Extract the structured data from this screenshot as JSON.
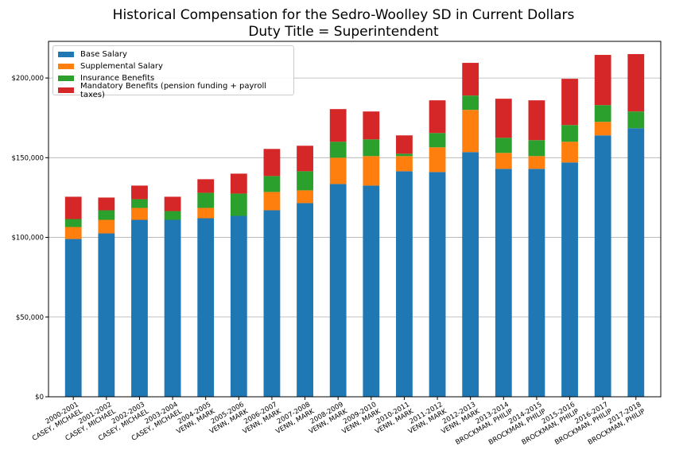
{
  "chart_data": {
    "type": "bar",
    "stacked": true,
    "title": "Historical Compensation for the Sedro-Woolley SD in Current Dollars",
    "subtitle": "Duty Title = Superintendent",
    "xlabel": "",
    "ylabel": "",
    "ylim": [
      0,
      223000
    ],
    "yticks": [
      0,
      50000,
      100000,
      150000,
      200000
    ],
    "ytick_labels": [
      "$0",
      "$50,000",
      "$100,000",
      "$150,000",
      "$200,000"
    ],
    "grid": "y",
    "legend_position": "top-left",
    "categories": [
      [
        "2000-2001",
        "CASEY, MICHAEL"
      ],
      [
        "2001-2002",
        "CASEY, MICHAEL"
      ],
      [
        "2002-2003",
        "CASEY, MICHAEL"
      ],
      [
        "2003-2004",
        "CASEY, MICHAEL"
      ],
      [
        "2004-2005",
        "VENN, MARK"
      ],
      [
        "2005-2006",
        "VENN, MARK"
      ],
      [
        "2006-2007",
        "VENN, MARK"
      ],
      [
        "2007-2008",
        "VENN, MARK"
      ],
      [
        "2008-2009",
        "VENN, MARK"
      ],
      [
        "2009-2010",
        "VENN, MARK"
      ],
      [
        "2010-2011",
        "VENN, MARK"
      ],
      [
        "2011-2012",
        "VENN, MARK"
      ],
      [
        "2012-2013",
        "VENN, MARK"
      ],
      [
        "2013-2014",
        "BROCKMAN, PHILIP"
      ],
      [
        "2014-2015",
        "BROCKMAN, PHILIP"
      ],
      [
        "2015-2016",
        "BROCKMAN, PHILIP"
      ],
      [
        "2016-2017",
        "BROCKMAN, PHILIP"
      ],
      [
        "2017-2018",
        "BROCKMAN, PHILIP"
      ]
    ],
    "series": [
      {
        "name": "Base Salary",
        "color": "#1f77b4",
        "values": [
          99000,
          102500,
          111000,
          111000,
          112000,
          113500,
          117000,
          121500,
          133500,
          132500,
          141500,
          141000,
          153500,
          143000,
          143000,
          147000,
          164000,
          168500
        ]
      },
      {
        "name": "Supplemental Salary",
        "color": "#ff7f0e",
        "values": [
          7500,
          8500,
          7500,
          0,
          6500,
          0,
          11500,
          8000,
          16500,
          18500,
          9500,
          15500,
          26500,
          10000,
          8000,
          13000,
          8500,
          0
        ]
      },
      {
        "name": "Insurance Benefits",
        "color": "#2ca02c",
        "values": [
          5000,
          6000,
          5500,
          5500,
          9500,
          14000,
          10000,
          12000,
          10000,
          10500,
          1500,
          9000,
          9000,
          9500,
          10000,
          10500,
          10500,
          10500
        ]
      },
      {
        "name": "Mandatory Benefits (pension funding + payroll taxes)",
        "color": "#d62728",
        "values": [
          14000,
          8000,
          8500,
          9000,
          8500,
          12500,
          17000,
          16000,
          20500,
          17500,
          11500,
          20500,
          20500,
          24500,
          25000,
          29000,
          31500,
          36000
        ]
      }
    ]
  }
}
